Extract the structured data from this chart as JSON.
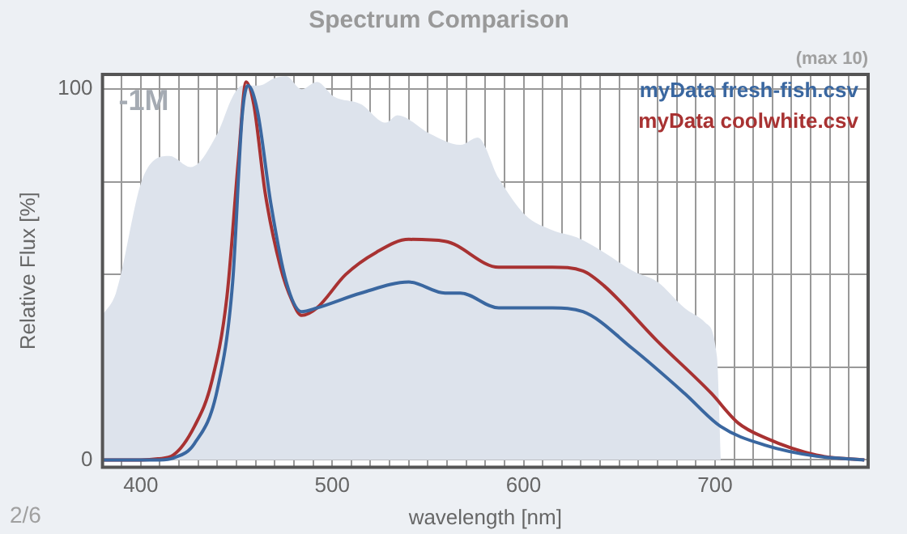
{
  "chart_data": {
    "type": "line",
    "title": "Spectrum Comparison",
    "xlabel": "wavelength [nm]",
    "ylabel": "Relative Flux [%]",
    "annotations": [
      "-1M",
      "(max 10)",
      "2/6"
    ],
    "xlim": [
      380,
      780
    ],
    "ylim": [
      -2,
      104
    ],
    "xticks": [
      {
        "value": 380,
        "label": null
      },
      {
        "value": 390,
        "label": null
      },
      400,
      {
        "value": 410,
        "label": null
      },
      {
        "value": 420,
        "label": null
      },
      {
        "value": 430,
        "label": null
      },
      {
        "value": 440,
        "label": null
      },
      {
        "value": 450,
        "label": null
      },
      {
        "value": 460,
        "label": null
      },
      {
        "value": 470,
        "label": null
      },
      {
        "value": 480,
        "label": null
      },
      {
        "value": 490,
        "label": null
      },
      500,
      {
        "value": 510,
        "label": null
      },
      {
        "value": 520,
        "label": null
      },
      {
        "value": 530,
        "label": null
      },
      {
        "value": 540,
        "label": null
      },
      {
        "value": 550,
        "label": null
      },
      {
        "value": 560,
        "label": null
      },
      {
        "value": 570,
        "label": null
      },
      {
        "value": 580,
        "label": null
      },
      {
        "value": 590,
        "label": null
      },
      600,
      {
        "value": 610,
        "label": null
      },
      {
        "value": 620,
        "label": null
      },
      {
        "value": 630,
        "label": null
      },
      {
        "value": 640,
        "label": null
      },
      {
        "value": 650,
        "label": null
      },
      {
        "value": 660,
        "label": null
      },
      {
        "value": 670,
        "label": null
      },
      {
        "value": 680,
        "label": null
      },
      {
        "value": 690,
        "label": null
      },
      700,
      {
        "value": 710,
        "label": null
      },
      {
        "value": 720,
        "label": null
      },
      {
        "value": 730,
        "label": null
      },
      {
        "value": 740,
        "label": null
      },
      {
        "value": 750,
        "label": null
      },
      {
        "value": 760,
        "label": null
      },
      {
        "value": 770,
        "label": null
      }
    ],
    "yticks": [
      0,
      {
        "value": 25,
        "label": null
      },
      {
        "value": 50,
        "label": null
      },
      {
        "value": 75,
        "label": null
      },
      100
    ],
    "grid": true,
    "legend": "top right",
    "marker": "none",
    "line_style": "solid",
    "series": [
      {
        "type": "area",
        "color": "#dde3ec",
        "x": [
          380,
          387,
          401,
          415,
          426,
          440,
          448,
          453,
          462,
          470,
          476,
          484,
          492,
          501,
          515,
          528,
          534,
          551,
          567,
          576,
          587,
          601,
          615,
          628,
          642,
          657,
          670,
          684,
          695,
          701,
          703
        ],
        "values": [
          39,
          45,
          76,
          82,
          79,
          88,
          98,
          101,
          101,
          103,
          103.5,
          100,
          102,
          98,
          96,
          91,
          93,
          88,
          85,
          87,
          76,
          66,
          62,
          60,
          56,
          51,
          48,
          41,
          37,
          28,
          0
        ]
      },
      {
        "name": "myData fresh-fish.csv",
        "color": "#3a67a0",
        "x": [
          380,
          410,
          417,
          428,
          440,
          448,
          453,
          456,
          461,
          468,
          476,
          484,
          492,
          515,
          540,
          559,
          567,
          587,
          615,
          631,
          657,
          684,
          703,
          726,
          753,
          778
        ],
        "values": [
          0,
          0,
          0.5,
          4.4,
          19,
          48,
          93,
          101,
          94,
          69,
          48,
          40,
          41,
          45,
          48,
          45,
          45,
          41,
          41,
          40,
          30,
          18,
          9,
          4,
          1,
          0
        ]
      },
      {
        "name": "myData coolwhite.csv",
        "color": "#a83232",
        "x": [
          380,
          400,
          409,
          417,
          428,
          437,
          445,
          451,
          455,
          459,
          465,
          473,
          479,
          484,
          492,
          507,
          523,
          540,
          559,
          587,
          615,
          631,
          642,
          670,
          698,
          712,
          726,
          753,
          778
        ],
        "values": [
          0,
          0,
          0.3,
          1.3,
          9,
          21,
          44,
          81,
          102,
          96,
          72,
          52,
          43,
          39,
          41,
          50,
          56,
          59.5,
          59,
          52,
          52,
          51,
          47,
          32,
          18,
          10,
          6,
          1.3,
          0
        ]
      }
    ]
  }
}
